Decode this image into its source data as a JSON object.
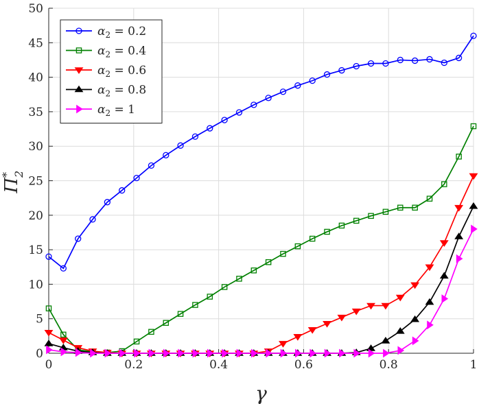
{
  "chart_data": {
    "type": "line",
    "xlabel": "γ",
    "ylabel": "Π",
    "ylabel_sub": "2",
    "ylabel_sup": "*",
    "xlim": [
      0,
      1
    ],
    "ylim": [
      0,
      50
    ],
    "xticks": [
      0,
      0.2,
      0.4,
      0.6,
      0.8,
      1
    ],
    "yticks": [
      0,
      5,
      10,
      15,
      20,
      25,
      30,
      35,
      40,
      45,
      50
    ],
    "xtick_labels": [
      "0",
      "0.2",
      "0.4",
      "0.6",
      "0.8",
      "1"
    ],
    "ytick_labels": [
      "0",
      "5",
      "10",
      "15",
      "20",
      "25",
      "30",
      "35",
      "40",
      "45",
      "50"
    ],
    "grid": true,
    "legend_position": "top-left",
    "x": [
      0,
      0.0345,
      0.069,
      0.1034,
      0.1379,
      0.1724,
      0.2069,
      0.2414,
      0.2759,
      0.3103,
      0.3448,
      0.3793,
      0.4138,
      0.4483,
      0.4828,
      0.5172,
      0.5517,
      0.5862,
      0.6207,
      0.6552,
      0.6897,
      0.7241,
      0.7586,
      0.7931,
      0.8276,
      0.8621,
      0.8966,
      0.931,
      0.9655,
      1
    ],
    "series": [
      {
        "name": "α2 = 0.2",
        "legend_alpha": "α",
        "legend_sub": "2",
        "legend_value": " = 0.2",
        "color": "#0000ff",
        "marker": "circle",
        "values": [
          14.0,
          12.3,
          16.6,
          19.4,
          21.9,
          23.6,
          25.4,
          27.2,
          28.7,
          30.1,
          31.4,
          32.6,
          33.8,
          34.9,
          36.0,
          37.0,
          37.9,
          38.8,
          39.5,
          40.4,
          41.0,
          41.6,
          42.0,
          42.0,
          42.5,
          42.4,
          42.6,
          42.1,
          42.8,
          46.0
        ]
      },
      {
        "name": "α2 = 0.4",
        "legend_alpha": "α",
        "legend_sub": "2",
        "legend_value": " = 0.4",
        "color": "#008000",
        "marker": "square",
        "values": [
          6.5,
          2.7,
          0.5,
          0.2,
          0.1,
          0.3,
          1.7,
          3.1,
          4.4,
          5.7,
          7.0,
          8.2,
          9.6,
          10.8,
          12.0,
          13.2,
          14.4,
          15.5,
          16.6,
          17.6,
          18.5,
          19.2,
          19.9,
          20.5,
          21.1,
          21.1,
          22.4,
          24.5,
          28.5,
          32.9
        ]
      },
      {
        "name": "α2 = 0.6",
        "legend_alpha": "α",
        "legend_sub": "2",
        "legend_value": " = 0.6",
        "color": "#ff0000",
        "marker": "triangle-down",
        "values": [
          3.0,
          1.9,
          0.8,
          0.3,
          0.1,
          0.0,
          0.0,
          0.0,
          0.0,
          0.0,
          0.0,
          0.0,
          0.0,
          0.0,
          0.0,
          0.3,
          1.4,
          2.4,
          3.4,
          4.3,
          5.2,
          6.1,
          6.9,
          6.9,
          8.1,
          9.9,
          12.5,
          16.0,
          21.1,
          25.7
        ]
      },
      {
        "name": "α2 = 0.8",
        "legend_alpha": "α",
        "legend_sub": "2",
        "legend_value": " = 0.8",
        "color": "#000000",
        "marker": "triangle-up",
        "values": [
          1.4,
          0.8,
          0.3,
          0.1,
          0.0,
          0.0,
          0.0,
          0.0,
          0.0,
          0.0,
          0.0,
          0.0,
          0.0,
          0.0,
          0.0,
          0.0,
          0.0,
          0.0,
          0.0,
          0.0,
          0.0,
          0.1,
          0.7,
          1.8,
          3.2,
          4.9,
          7.4,
          11.2,
          16.9,
          21.3
        ]
      },
      {
        "name": "α2 = 1",
        "legend_alpha": "α",
        "legend_sub": "2",
        "legend_value": " = 1",
        "color": "#ff00ff",
        "marker": "triangle-right",
        "values": [
          0.5,
          0.2,
          0.1,
          0.0,
          0.0,
          0.0,
          0.0,
          0.0,
          0.0,
          0.0,
          0.0,
          0.0,
          0.0,
          0.0,
          0.0,
          0.0,
          0.0,
          0.0,
          0.0,
          0.0,
          0.0,
          0.0,
          0.0,
          0.0,
          0.4,
          1.8,
          4.1,
          7.9,
          13.7,
          18.0
        ]
      }
    ]
  }
}
